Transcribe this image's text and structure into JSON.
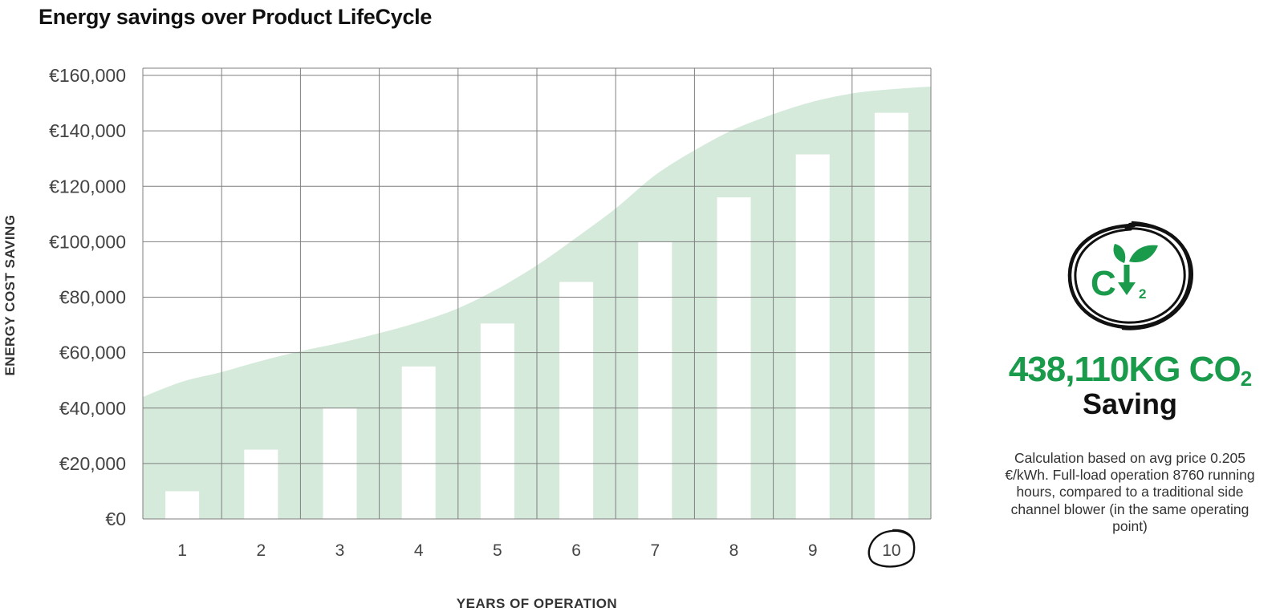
{
  "title": "Energy savings over Product LifeCycle",
  "colors": {
    "area": "#d5eadb",
    "bar": "#ffffff",
    "grid": "#7f7f7f",
    "accent": "#1a9a4b",
    "text": "#111111"
  },
  "chart_data": {
    "type": "bar",
    "title": "Energy savings over Product LifeCycle",
    "xlabel": "YEARS OF OPERATION",
    "ylabel": "ENERGY COST SAVING",
    "categories": [
      "1",
      "2",
      "3",
      "4",
      "5",
      "6",
      "7",
      "8",
      "9",
      "10"
    ],
    "values": [
      10000,
      25000,
      40000,
      55000,
      70500,
      85500,
      100000,
      116000,
      131500,
      146500
    ],
    "ylim": [
      0,
      160000
    ],
    "yticks": [
      0,
      20000,
      40000,
      60000,
      80000,
      100000,
      120000,
      140000,
      160000
    ],
    "ytick_labels": [
      "€0",
      "€20,000",
      "€40,000",
      "€60,000",
      "€80,000",
      "€100,000",
      "€120,000",
      "€140,000",
      "€160,000"
    ],
    "area_curve": {
      "x": [
        0.5,
        1,
        1.5,
        2,
        2.5,
        3,
        3.5,
        4,
        4.5,
        5,
        5.5,
        6,
        6.5,
        7,
        7.5,
        8,
        8.5,
        9,
        9.5,
        10,
        10.5
      ],
      "y": [
        44000,
        49500,
        53000,
        57000,
        60500,
        63500,
        67000,
        71000,
        76000,
        83000,
        91500,
        101500,
        112000,
        124000,
        133000,
        140500,
        146000,
        150500,
        153500,
        155000,
        156000
      ]
    },
    "grid": true,
    "highlighted_category": "10"
  },
  "co2": {
    "icon": "co2-reduction-icon",
    "icon_text": "C",
    "icon_sub": "2",
    "value": "438,110KG CO",
    "value_sub": "2",
    "label": "Saving",
    "note": "Calculation based on avg price 0.205 €/kWh. Full-load operation 8760 running hours, compared to a traditional side channel blower (in the same operating point)"
  }
}
